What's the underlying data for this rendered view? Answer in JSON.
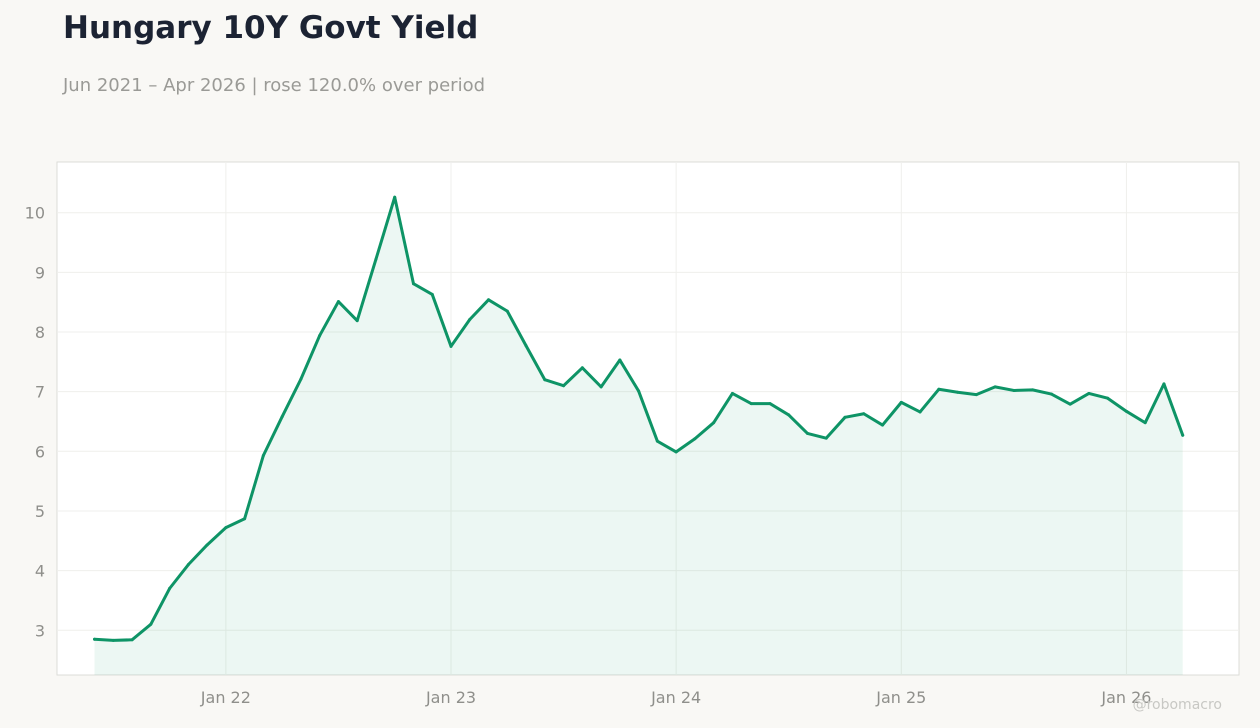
{
  "header": {
    "title": "Hungary 10Y Govt Yield",
    "subtitle": "Jun 2021 – Apr 2026 | rose 120.0% over period"
  },
  "watermark": "@robomacro",
  "colors": {
    "line": "#0e9466",
    "fill": "#0e9466",
    "background": "#f9f8f5",
    "plot_background": "#ffffff",
    "grid": "#efefec",
    "axis_text": "#8f8f8b"
  },
  "chart_data": {
    "type": "area",
    "title": "Hungary 10Y Govt Yield",
    "subtitle": "Jun 2021 – Apr 2026 | rose 120.0% over period",
    "xlabel": "",
    "ylabel": "",
    "x_range": [
      "2021-04-01",
      "2026-07-01"
    ],
    "ylim": [
      2.25,
      10.85
    ],
    "y_ticks": [
      3,
      4,
      5,
      6,
      7,
      8,
      9,
      10
    ],
    "x_ticks": [
      {
        "label": "Jan 22",
        "date": "2022-01-01"
      },
      {
        "label": "Jan 23",
        "date": "2023-01-01"
      },
      {
        "label": "Jan 24",
        "date": "2024-01-01"
      },
      {
        "label": "Jan 25",
        "date": "2025-01-01"
      },
      {
        "label": "Jan 26",
        "date": "2026-01-01"
      }
    ],
    "grid": true,
    "legend": "none",
    "series": [
      {
        "x": [
          "2021-06",
          "2021-07",
          "2021-08",
          "2021-09",
          "2021-10",
          "2021-11",
          "2021-12",
          "2022-01",
          "2022-02",
          "2022-03",
          "2022-04",
          "2022-05",
          "2022-06",
          "2022-07",
          "2022-08",
          "2022-09",
          "2022-10",
          "2022-11",
          "2022-12",
          "2023-01",
          "2023-02",
          "2023-03",
          "2023-04",
          "2023-05",
          "2023-06",
          "2023-07",
          "2023-08",
          "2023-09",
          "2023-10",
          "2023-11",
          "2023-12",
          "2024-01",
          "2024-02",
          "2024-03",
          "2024-04",
          "2024-05",
          "2024-06",
          "2024-07",
          "2024-08",
          "2024-09",
          "2024-10",
          "2024-11",
          "2024-12",
          "2025-01",
          "2025-02",
          "2025-03",
          "2025-04",
          "2025-05",
          "2025-06",
          "2025-07",
          "2025-08",
          "2025-09",
          "2025-10",
          "2025-11",
          "2025-12",
          "2026-01",
          "2026-02",
          "2026-03",
          "2026-04"
        ],
        "values": [
          2.85,
          2.83,
          2.84,
          3.1,
          3.7,
          4.1,
          4.43,
          4.72,
          4.87,
          5.93,
          6.58,
          7.21,
          7.94,
          8.51,
          8.19,
          9.22,
          10.26,
          8.81,
          8.63,
          7.76,
          8.21,
          8.54,
          8.35,
          7.77,
          7.2,
          7.1,
          7.4,
          7.08,
          7.53,
          7.01,
          6.17,
          5.99,
          6.21,
          6.48,
          6.97,
          6.8,
          6.8,
          6.61,
          6.3,
          6.22,
          6.57,
          6.63,
          6.44,
          6.82,
          6.66,
          7.04,
          6.99,
          6.95,
          7.08,
          7.02,
          7.03,
          6.96,
          6.79,
          6.97,
          6.89,
          6.67,
          6.48,
          7.13,
          6.27
        ]
      }
    ]
  }
}
